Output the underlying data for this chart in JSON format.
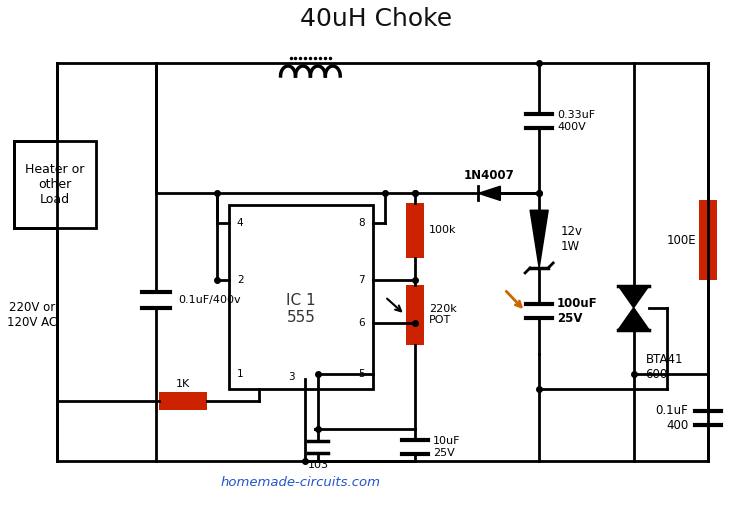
{
  "title": "40uH Choke",
  "watermark": "homemade-circuits.com",
  "bg_color": "#ffffff",
  "line_color": "#000000",
  "resistor_color": "#cc2200",
  "arrow_color": "#cc6600",
  "figsize": [
    7.53,
    5.09
  ],
  "dpi": 100,
  "labels": {
    "heater": "Heater or\nother\nLoad",
    "ac": "220V or\n120V AC",
    "cap1_label": "0.1uF/400v",
    "cap2_label": "0.33uF\n400V",
    "cap3_label": "100uF\n25V",
    "cap4_label": "10uF\n25V",
    "cap5_label": "0.1uF\n400",
    "diode_label": "1N4007",
    "r100k_label": "100k",
    "r220k_label": "220k\nPOT",
    "r1k_label": "1K",
    "r100e_label": "100E",
    "zener_label": "12v\n1W",
    "triac_label": "BTA41\n600",
    "ic_label": "IC 1\n555",
    "cap_bot_label": "103",
    "pin4": "4",
    "pin8": "8",
    "pin2": "2",
    "pin7": "7",
    "pin6": "6",
    "pin5": "5",
    "pin1": "1",
    "pin3": "3"
  }
}
